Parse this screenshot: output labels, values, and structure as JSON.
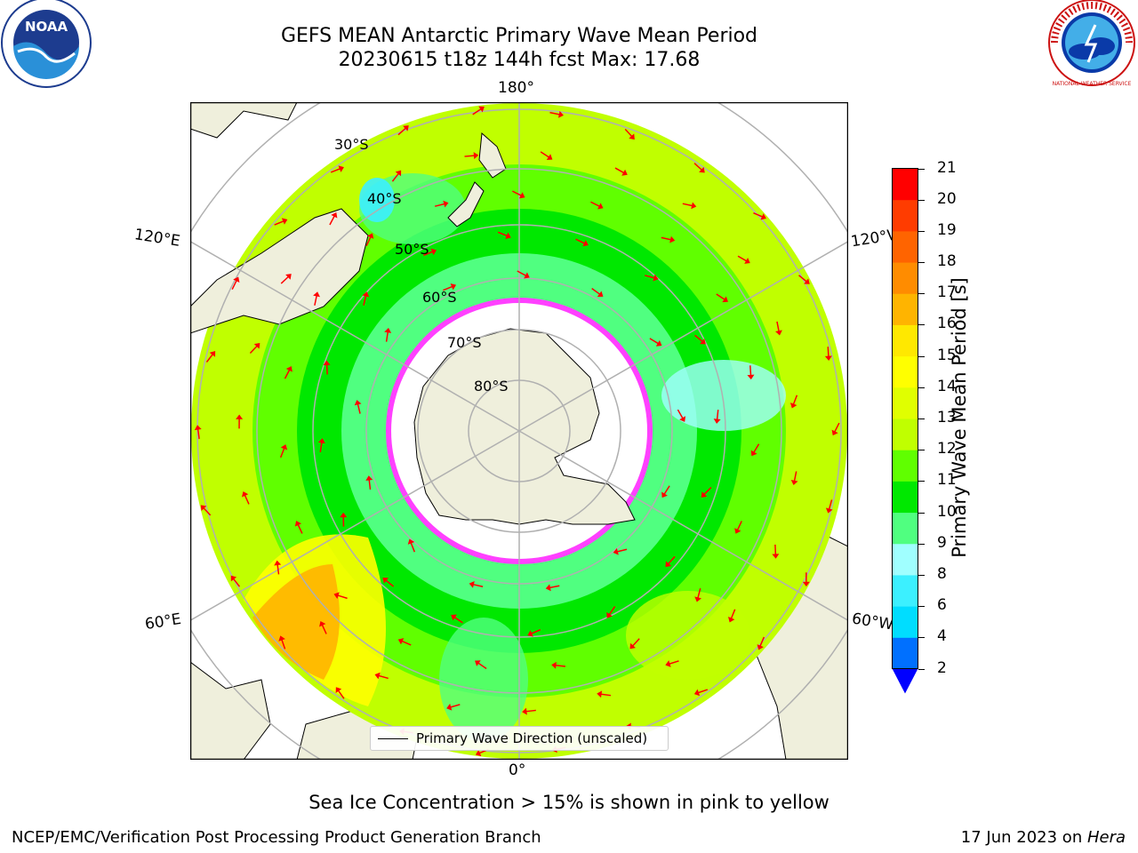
{
  "header": {
    "title_line1": "GEFS MEAN Antarctic Primary Wave Mean Period",
    "title_line2": "20230615 t18z 144h fcst   Max: 17.68"
  },
  "logos": {
    "noaa_text": "NOAA",
    "nws_text": "NATIONAL WEATHER SERVICE"
  },
  "map": {
    "lon_labels": {
      "top": "180°",
      "bottom": "0°",
      "left_upper": "120°E",
      "left_lower": "60°E",
      "right_upper": "120°W",
      "right_lower": "60°W"
    },
    "lat_labels": [
      "30°S",
      "40°S",
      "50°S",
      "60°S",
      "70°S",
      "80°S"
    ],
    "legend": "Primary Wave Direction (unscaled)",
    "colors": {
      "land": "#efefdc",
      "ocean_default": "#7cfc00",
      "arrow": "#ff0000",
      "ice": "#ffffff",
      "grid": "#b0b0b0"
    }
  },
  "colorbar": {
    "label": "Primary Wave Mean Period [s]",
    "ticks": [
      "2",
      "4",
      "6",
      "8",
      "9",
      "10",
      "11",
      "12",
      "13",
      "14",
      "15",
      "16",
      "17",
      "18",
      "19",
      "20",
      "21"
    ],
    "colors": [
      "#0070ff",
      "#00ddff",
      "#3cf0ff",
      "#a0ffff",
      "#50ff80",
      "#00e800",
      "#60ff00",
      "#c0ff00",
      "#e0ff00",
      "#ffff00",
      "#ffe800",
      "#ffb400",
      "#ff8c00",
      "#ff6400",
      "#ff3c00",
      "#ff0000"
    ],
    "under_color": "#0000ff"
  },
  "notes": {
    "sea_ice": "Sea Ice Concentration > 15% is shown in pink to yellow"
  },
  "footer": {
    "left": "NCEP/EMC/Verification Post Processing Product Generation Branch",
    "right_date": "17 Jun 2023 on ",
    "right_host": "Hera"
  }
}
